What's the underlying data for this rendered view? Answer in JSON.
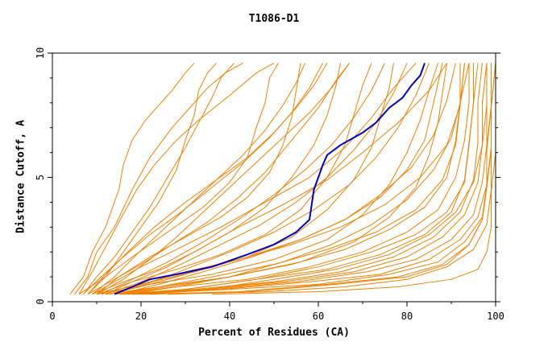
{
  "chart_data": {
    "type": "line",
    "title": "T1086-D1",
    "xlabel": "Percent of Residues (CA)",
    "ylabel": "Distance Cutoff, A",
    "xlim": [
      0,
      100
    ],
    "ylim": [
      0,
      10
    ],
    "x_ticks": [
      "0",
      "20",
      "40",
      "60",
      "80",
      "100"
    ],
    "y_ticks": [
      "0",
      "5",
      "10"
    ],
    "grid": false,
    "colors": {
      "group": "#f08000",
      "highlight": "#0000c0",
      "axis": "#000000"
    },
    "highlight_series": {
      "x": [
        14,
        18,
        22,
        28,
        36,
        44,
        50,
        55,
        58,
        59,
        61,
        62,
        65,
        70,
        73,
        76,
        79,
        81,
        83,
        84
      ],
      "y": [
        0.3,
        0.6,
        0.9,
        1.1,
        1.4,
        1.9,
        2.3,
        2.8,
        3.3,
        4.5,
        5.5,
        5.9,
        6.3,
        6.8,
        7.2,
        7.8,
        8.2,
        8.7,
        9.1,
        9.6
      ]
    },
    "group_series": [
      {
        "x": [
          4,
          7,
          9,
          12,
          15,
          16,
          18,
          21,
          24,
          27,
          30,
          32
        ],
        "y": [
          0.3,
          1.0,
          2.0,
          3.0,
          4.5,
          5.5,
          6.5,
          7.3,
          7.9,
          8.5,
          9.2,
          9.6
        ]
      },
      {
        "x": [
          5,
          8,
          10,
          14,
          18,
          22,
          27,
          31,
          35,
          39,
          43
        ],
        "y": [
          0.3,
          1.0,
          2.0,
          3.0,
          4.5,
          5.8,
          7.0,
          7.8,
          8.6,
          9.2,
          9.6
        ]
      },
      {
        "x": [
          6,
          9,
          12,
          15,
          19,
          23,
          28,
          33,
          40,
          46,
          50
        ],
        "y": [
          0.3,
          1.2,
          2.2,
          3.2,
          4.5,
          5.5,
          6.5,
          7.3,
          8.3,
          9.2,
          9.6
        ]
      },
      {
        "x": [
          7,
          10,
          14,
          18,
          22,
          26,
          30,
          33,
          36,
          38,
          41
        ],
        "y": [
          0.3,
          1.0,
          1.8,
          2.8,
          3.8,
          5.0,
          6.2,
          7.2,
          8.2,
          9.0,
          9.6
        ]
      },
      {
        "x": [
          6,
          12,
          18,
          26,
          34,
          40,
          44,
          46,
          48,
          49,
          51
        ],
        "y": [
          0.3,
          1.0,
          1.8,
          2.8,
          3.8,
          4.8,
          5.8,
          7.0,
          8.0,
          9.0,
          9.6
        ]
      },
      {
        "x": [
          8,
          12,
          16,
          20,
          24,
          28,
          30,
          32,
          33,
          35,
          37
        ],
        "y": [
          0.3,
          1.0,
          2.0,
          3.0,
          4.0,
          5.3,
          6.5,
          7.5,
          8.5,
          9.2,
          9.6
        ]
      },
      {
        "x": [
          8,
          14,
          20,
          27,
          35,
          42,
          48,
          54,
          60,
          64,
          67
        ],
        "y": [
          0.3,
          0.9,
          1.5,
          2.3,
          3.2,
          4.2,
          5.2,
          6.5,
          7.8,
          8.9,
          9.6
        ]
      },
      {
        "x": [
          9,
          16,
          24,
          32,
          40,
          48,
          54,
          59,
          62,
          64,
          65
        ],
        "y": [
          0.3,
          0.8,
          1.3,
          2.0,
          2.8,
          3.8,
          5.0,
          6.3,
          7.5,
          8.7,
          9.6
        ]
      },
      {
        "x": [
          10,
          18,
          28,
          38,
          48,
          56,
          62,
          66,
          68,
          70,
          72
        ],
        "y": [
          0.3,
          0.8,
          1.3,
          1.9,
          2.7,
          3.7,
          5.0,
          6.3,
          7.5,
          8.7,
          9.6
        ]
      },
      {
        "x": [
          10,
          20,
          32,
          44,
          54,
          62,
          68,
          72,
          74,
          76,
          77
        ],
        "y": [
          0.3,
          0.7,
          1.2,
          1.8,
          2.6,
          3.7,
          4.9,
          6.2,
          7.4,
          8.6,
          9.6
        ]
      },
      {
        "x": [
          11,
          22,
          36,
          50,
          62,
          70,
          76,
          80,
          83,
          85,
          87
        ],
        "y": [
          0.3,
          0.7,
          1.1,
          1.7,
          2.5,
          3.5,
          4.7,
          6.0,
          7.3,
          8.5,
          9.6
        ]
      },
      {
        "x": [
          12,
          24,
          40,
          56,
          68,
          76,
          82,
          85,
          87,
          88,
          89
        ],
        "y": [
          0.3,
          0.6,
          1.0,
          1.6,
          2.4,
          3.4,
          4.6,
          5.9,
          7.2,
          8.4,
          9.6
        ]
      },
      {
        "x": [
          9,
          14,
          20,
          28,
          38,
          48,
          58,
          66,
          72,
          77,
          82
        ],
        "y": [
          0.3,
          0.8,
          1.4,
          2.1,
          3.0,
          4.0,
          5.0,
          6.2,
          7.4,
          8.6,
          9.6
        ]
      },
      {
        "x": [
          12,
          18,
          26,
          34,
          42,
          52,
          62,
          70,
          78,
          85,
          89
        ],
        "y": [
          0.3,
          0.8,
          1.4,
          2.2,
          3.0,
          3.9,
          4.9,
          6.0,
          7.2,
          8.5,
          9.6
        ]
      },
      {
        "x": [
          13,
          22,
          32,
          44,
          56,
          66,
          74,
          80,
          84,
          86,
          88
        ],
        "y": [
          0.3,
          0.7,
          1.2,
          1.8,
          2.5,
          3.3,
          4.2,
          5.3,
          6.5,
          8.0,
          9.6
        ]
      },
      {
        "x": [
          14,
          26,
          40,
          54,
          66,
          76,
          84,
          89,
          91,
          92,
          93
        ],
        "y": [
          0.3,
          0.6,
          1.0,
          1.5,
          2.1,
          2.9,
          3.8,
          5.0,
          6.5,
          8.0,
          9.6
        ]
      },
      {
        "x": [
          15,
          28,
          44,
          58,
          70,
          80,
          87,
          91,
          93,
          94,
          94
        ],
        "y": [
          0.3,
          0.6,
          0.9,
          1.4,
          2.0,
          2.8,
          3.7,
          5.0,
          6.5,
          8.0,
          9.6
        ]
      },
      {
        "x": [
          15,
          30,
          46,
          62,
          74,
          84,
          90,
          93,
          94,
          95,
          95
        ],
        "y": [
          0.3,
          0.5,
          0.9,
          1.3,
          1.9,
          2.7,
          3.6,
          4.9,
          6.4,
          8.0,
          9.6
        ]
      },
      {
        "x": [
          16,
          32,
          50,
          65,
          77,
          86,
          92,
          95,
          96,
          96,
          97
        ],
        "y": [
          0.3,
          0.5,
          0.8,
          1.2,
          1.8,
          2.6,
          3.6,
          4.9,
          6.4,
          8.0,
          9.6
        ]
      },
      {
        "x": [
          17,
          34,
          52,
          68,
          80,
          88,
          93,
          96,
          97,
          97,
          98
        ],
        "y": [
          0.3,
          0.5,
          0.8,
          1.2,
          1.8,
          2.6,
          3.5,
          4.8,
          6.3,
          8.0,
          9.6
        ]
      },
      {
        "x": [
          18,
          36,
          55,
          71,
          82,
          90,
          95,
          97,
          98,
          98,
          98
        ],
        "y": [
          0.3,
          0.5,
          0.8,
          1.2,
          1.7,
          2.5,
          3.5,
          4.8,
          6.3,
          8.0,
          9.6
        ]
      },
      {
        "x": [
          18,
          38,
          58,
          74,
          85,
          92,
          96,
          98,
          98,
          99,
          99
        ],
        "y": [
          0.3,
          0.5,
          0.8,
          1.1,
          1.7,
          2.5,
          3.4,
          4.7,
          6.2,
          7.9,
          9.6
        ]
      },
      {
        "x": [
          19,
          40,
          60,
          76,
          87,
          93,
          97,
          98,
          99,
          99,
          99
        ],
        "y": [
          0.3,
          0.5,
          0.7,
          1.1,
          1.6,
          2.4,
          3.4,
          4.7,
          6.2,
          7.9,
          9.6
        ]
      },
      {
        "x": [
          20,
          42,
          62,
          78,
          88,
          94,
          97,
          98,
          99,
          99,
          100
        ],
        "y": [
          0.3,
          0.4,
          0.7,
          1.0,
          1.5,
          2.3,
          3.3,
          4.6,
          6.1,
          7.8,
          9.6
        ]
      },
      {
        "x": [
          22,
          44,
          64,
          80,
          89,
          94,
          97,
          98,
          98,
          99,
          99
        ],
        "y": [
          0.3,
          0.4,
          0.7,
          1.0,
          1.5,
          2.3,
          3.3,
          4.6,
          6.1,
          7.8,
          9.6
        ]
      },
      {
        "x": [
          13,
          20,
          30,
          42,
          54,
          65,
          75,
          83,
          89,
          92,
          93
        ],
        "y": [
          0.3,
          0.7,
          1.2,
          1.7,
          2.3,
          3.0,
          3.9,
          5.0,
          6.3,
          7.9,
          9.6
        ]
      },
      {
        "x": [
          14,
          24,
          36,
          50,
          62,
          73,
          82,
          88,
          91,
          92,
          92
        ],
        "y": [
          0.3,
          0.6,
          1.0,
          1.5,
          2.1,
          2.8,
          3.7,
          4.9,
          6.3,
          7.9,
          9.6
        ]
      },
      {
        "x": [
          16,
          30,
          46,
          60,
          72,
          82,
          89,
          93,
          94,
          95,
          96
        ],
        "y": [
          0.3,
          0.5,
          0.9,
          1.4,
          2.0,
          2.7,
          3.6,
          4.8,
          6.3,
          8.0,
          9.6
        ]
      },
      {
        "x": [
          26,
          48,
          66,
          80,
          89,
          95,
          98,
          99,
          99,
          99,
          100
        ],
        "y": [
          0.3,
          0.4,
          0.6,
          0.9,
          1.4,
          2.1,
          3.1,
          4.5,
          6.0,
          7.8,
          9.6
        ]
      },
      {
        "x": [
          36,
          60,
          78,
          90,
          96,
          98,
          99,
          99,
          100,
          100,
          100
        ],
        "y": [
          0.3,
          0.4,
          0.6,
          0.9,
          1.3,
          2.0,
          3.0,
          4.4,
          6.0,
          7.8,
          9.6
        ]
      },
      {
        "x": [
          10,
          16,
          22,
          28,
          34,
          40,
          46,
          52,
          58,
          63,
          67
        ],
        "y": [
          0.3,
          0.9,
          1.7,
          2.6,
          3.6,
          4.6,
          5.6,
          6.6,
          7.6,
          8.6,
          9.6
        ]
      },
      {
        "x": [
          11,
          18,
          26,
          34,
          42,
          50,
          57,
          63,
          68,
          72,
          75
        ],
        "y": [
          0.3,
          0.9,
          1.6,
          2.4,
          3.3,
          4.3,
          5.3,
          6.3,
          7.4,
          8.5,
          9.6
        ]
      },
      {
        "x": [
          12,
          20,
          29,
          38,
          47,
          55,
          62,
          68,
          73,
          77,
          80
        ],
        "y": [
          0.3,
          0.8,
          1.5,
          2.3,
          3.1,
          4.0,
          5.0,
          6.1,
          7.2,
          8.4,
          9.6
        ]
      },
      {
        "x": [
          7,
          11,
          16,
          22,
          29,
          36,
          43,
          49,
          54,
          58,
          61
        ],
        "y": [
          0.3,
          1.0,
          1.8,
          2.7,
          3.6,
          4.6,
          5.6,
          6.6,
          7.6,
          8.6,
          9.6
        ]
      },
      {
        "x": [
          9,
          14,
          19,
          25,
          31,
          37,
          43,
          48,
          52,
          55,
          57
        ],
        "y": [
          0.3,
          1.0,
          1.9,
          2.9,
          3.9,
          4.9,
          5.9,
          6.9,
          7.9,
          8.8,
          9.6
        ]
      },
      {
        "x": [
          8,
          12,
          17,
          23,
          30,
          37,
          44,
          50,
          55,
          59,
          62
        ],
        "y": [
          0.3,
          1.1,
          2.0,
          3.0,
          4.0,
          4.9,
          5.8,
          6.8,
          7.8,
          8.7,
          9.6
        ]
      },
      {
        "x": [
          10,
          15,
          22,
          30,
          38,
          44,
          49,
          52,
          54,
          55,
          56
        ],
        "y": [
          0.3,
          1.0,
          1.8,
          2.6,
          3.4,
          4.2,
          5.2,
          6.3,
          7.4,
          8.5,
          9.6
        ]
      },
      {
        "x": [
          13,
          21,
          30,
          40,
          50,
          59,
          67,
          73,
          78,
          82,
          85
        ],
        "y": [
          0.3,
          0.7,
          1.3,
          2.0,
          2.8,
          3.7,
          4.7,
          5.8,
          7.0,
          8.3,
          9.6
        ]
      },
      {
        "x": [
          15,
          24,
          34,
          45,
          56,
          66,
          74,
          81,
          86,
          89,
          91
        ],
        "y": [
          0.3,
          0.7,
          1.2,
          1.8,
          2.5,
          3.3,
          4.3,
          5.4,
          6.7,
          8.1,
          9.6
        ]
      },
      {
        "x": [
          17,
          28,
          40,
          52,
          63,
          72,
          80,
          86,
          90,
          92,
          94
        ],
        "y": [
          0.3,
          0.6,
          1.0,
          1.6,
          2.3,
          3.1,
          4.1,
          5.3,
          6.6,
          8.0,
          9.6
        ]
      },
      {
        "x": [
          21,
          35,
          50,
          64,
          76,
          85,
          91,
          95,
          97,
          98,
          98
        ],
        "y": [
          0.3,
          0.5,
          0.9,
          1.3,
          1.9,
          2.7,
          3.6,
          4.8,
          6.3,
          7.9,
          9.6
        ]
      }
    ]
  }
}
